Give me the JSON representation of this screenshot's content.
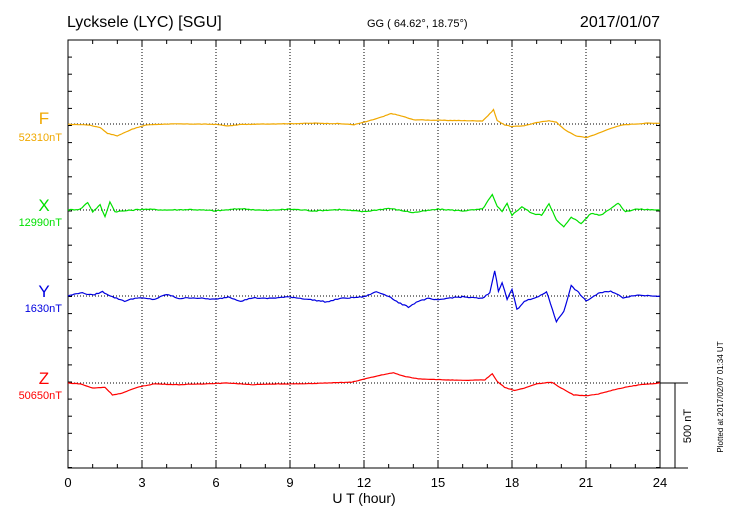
{
  "header": {
    "station": "Lycksele (LYC)  [SGU]",
    "coords": "GG ( 64.62°,  18.75°)",
    "date": "2017/01/07"
  },
  "footer": {
    "plotted": "Plotted at 2017/02/07 01:34 UT"
  },
  "chart_data": {
    "type": "line",
    "xlabel": "U T (hour)",
    "xlim": [
      0,
      24
    ],
    "xticks": [
      "0",
      "3",
      "6",
      "9",
      "12",
      "15",
      "18",
      "21",
      "24"
    ],
    "grid": true,
    "scale_bar": {
      "label": "500 nT",
      "value": 500
    },
    "series": [
      {
        "name": "F",
        "baseline": "52310nT",
        "color": "#f0a800",
        "points": [
          [
            0,
            -2
          ],
          [
            0.8,
            -5
          ],
          [
            1.3,
            -20
          ],
          [
            1.6,
            -55
          ],
          [
            2.0,
            -70
          ],
          [
            2.6,
            -30
          ],
          [
            3.2,
            -5
          ],
          [
            4,
            0
          ],
          [
            5,
            0
          ],
          [
            6,
            -2
          ],
          [
            6.5,
            -12
          ],
          [
            7,
            -3
          ],
          [
            8,
            0
          ],
          [
            9,
            2
          ],
          [
            10,
            5
          ],
          [
            11,
            2
          ],
          [
            11.6,
            -4
          ],
          [
            12.2,
            18
          ],
          [
            12.8,
            45
          ],
          [
            13.1,
            62
          ],
          [
            13.5,
            48
          ],
          [
            14,
            25
          ],
          [
            15,
            22
          ],
          [
            16,
            20
          ],
          [
            16.8,
            18
          ],
          [
            17.1,
            60
          ],
          [
            17.25,
            85
          ],
          [
            17.4,
            20
          ],
          [
            17.7,
            -5
          ],
          [
            18,
            -15
          ],
          [
            18.5,
            -10
          ],
          [
            19,
            8
          ],
          [
            19.5,
            20
          ],
          [
            19.8,
            10
          ],
          [
            20.2,
            -40
          ],
          [
            20.6,
            -70
          ],
          [
            21,
            -80
          ],
          [
            21.5,
            -55
          ],
          [
            22,
            -25
          ],
          [
            22.5,
            -5
          ],
          [
            23,
            0
          ],
          [
            23.5,
            5
          ],
          [
            24,
            5
          ]
        ]
      },
      {
        "name": "X",
        "baseline": "12990nT",
        "color": "#00e000",
        "points": [
          [
            0,
            0
          ],
          [
            0.5,
            5
          ],
          [
            0.8,
            45
          ],
          [
            1.0,
            -10
          ],
          [
            1.3,
            30
          ],
          [
            1.5,
            -40
          ],
          [
            1.7,
            50
          ],
          [
            1.9,
            -10
          ],
          [
            2.3,
            -5
          ],
          [
            3,
            5
          ],
          [
            4,
            0
          ],
          [
            5,
            3
          ],
          [
            6,
            -5
          ],
          [
            7,
            8
          ],
          [
            8,
            -3
          ],
          [
            9,
            5
          ],
          [
            10,
            -5
          ],
          [
            11,
            3
          ],
          [
            12,
            -10
          ],
          [
            13,
            10
          ],
          [
            14,
            -15
          ],
          [
            15,
            5
          ],
          [
            16,
            -5
          ],
          [
            16.8,
            5
          ],
          [
            17.2,
            90
          ],
          [
            17.4,
            20
          ],
          [
            17.6,
            -10
          ],
          [
            17.8,
            40
          ],
          [
            18,
            -30
          ],
          [
            18.4,
            20
          ],
          [
            18.8,
            -20
          ],
          [
            19.2,
            -30
          ],
          [
            19.5,
            40
          ],
          [
            19.8,
            -60
          ],
          [
            20.1,
            -100
          ],
          [
            20.4,
            -40
          ],
          [
            20.8,
            -80
          ],
          [
            21.2,
            -20
          ],
          [
            21.6,
            -30
          ],
          [
            22,
            10
          ],
          [
            22.3,
            40
          ],
          [
            22.6,
            -10
          ],
          [
            23,
            5
          ],
          [
            24,
            0
          ]
        ]
      },
      {
        "name": "Y",
        "baseline": "1630nT",
        "color": "#0000e0",
        "points": [
          [
            0,
            0
          ],
          [
            0.5,
            20
          ],
          [
            1.0,
            5
          ],
          [
            1.4,
            25
          ],
          [
            1.8,
            -5
          ],
          [
            2.3,
            -30
          ],
          [
            2.8,
            -10
          ],
          [
            3.5,
            -20
          ],
          [
            4,
            10
          ],
          [
            4.5,
            -15
          ],
          [
            5,
            -10
          ],
          [
            6,
            -20
          ],
          [
            6.5,
            -5
          ],
          [
            7,
            -30
          ],
          [
            7.5,
            -10
          ],
          [
            8,
            -15
          ],
          [
            9,
            -5
          ],
          [
            10,
            -25
          ],
          [
            10.5,
            -35
          ],
          [
            11,
            -15
          ],
          [
            11.5,
            -10
          ],
          [
            12,
            -5
          ],
          [
            12.5,
            25
          ],
          [
            13,
            0
          ],
          [
            13.4,
            -40
          ],
          [
            13.8,
            -65
          ],
          [
            14.2,
            -30
          ],
          [
            14.6,
            -15
          ],
          [
            15,
            -25
          ],
          [
            15.5,
            -10
          ],
          [
            16,
            -5
          ],
          [
            16.8,
            -15
          ],
          [
            17.1,
            20
          ],
          [
            17.3,
            150
          ],
          [
            17.45,
            30
          ],
          [
            17.6,
            80
          ],
          [
            17.8,
            -20
          ],
          [
            18,
            40
          ],
          [
            18.2,
            -80
          ],
          [
            18.5,
            -30
          ],
          [
            19,
            -10
          ],
          [
            19.4,
            25
          ],
          [
            19.8,
            -150
          ],
          [
            20.1,
            -90
          ],
          [
            20.4,
            60
          ],
          [
            20.7,
            20
          ],
          [
            21,
            -30
          ],
          [
            21.5,
            15
          ],
          [
            22,
            30
          ],
          [
            22.5,
            -10
          ],
          [
            23,
            5
          ],
          [
            24,
            0
          ]
        ]
      },
      {
        "name": "Z",
        "baseline": "50650nT",
        "color": "#ff0000",
        "points": [
          [
            0,
            0
          ],
          [
            0.5,
            -5
          ],
          [
            1.0,
            -30
          ],
          [
            1.5,
            -25
          ],
          [
            1.8,
            -70
          ],
          [
            2.2,
            -60
          ],
          [
            2.8,
            -25
          ],
          [
            3.5,
            -5
          ],
          [
            4.5,
            -10
          ],
          [
            5.5,
            -5
          ],
          [
            6.5,
            0
          ],
          [
            7.5,
            -10
          ],
          [
            8.5,
            -5
          ],
          [
            9.5,
            -5
          ],
          [
            10.5,
            0
          ],
          [
            11.5,
            5
          ],
          [
            12.2,
            30
          ],
          [
            12.8,
            50
          ],
          [
            13.2,
            60
          ],
          [
            13.6,
            40
          ],
          [
            14.2,
            25
          ],
          [
            15,
            20
          ],
          [
            16,
            15
          ],
          [
            16.9,
            18
          ],
          [
            17.2,
            55
          ],
          [
            17.4,
            10
          ],
          [
            17.7,
            -25
          ],
          [
            18.1,
            -45
          ],
          [
            18.5,
            -30
          ],
          [
            19,
            -5
          ],
          [
            19.6,
            5
          ],
          [
            20,
            -30
          ],
          [
            20.5,
            -70
          ],
          [
            21,
            -75
          ],
          [
            21.5,
            -65
          ],
          [
            22,
            -45
          ],
          [
            22.6,
            -25
          ],
          [
            23.2,
            -10
          ],
          [
            24,
            0
          ]
        ]
      }
    ]
  }
}
